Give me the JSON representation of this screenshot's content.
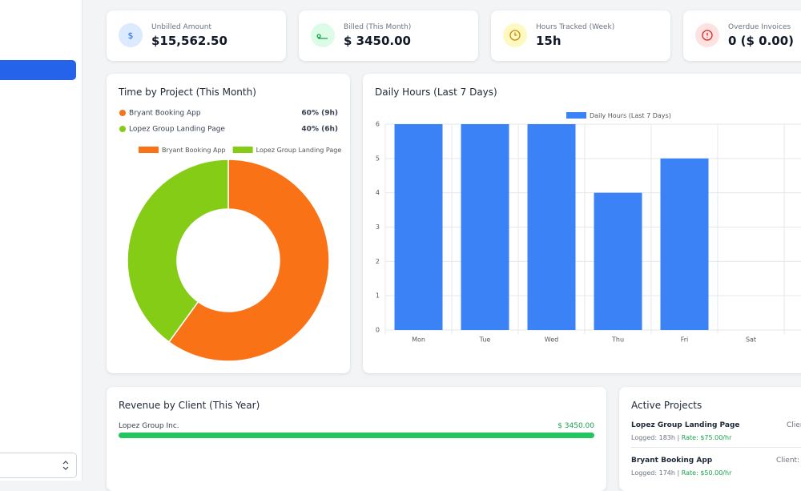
{
  "stats": [
    {
      "label": "Unbilled Amount",
      "value": "$15,562.50"
    },
    {
      "label": "Billed (This Month)",
      "value": "$ 3450.00"
    },
    {
      "label": "Hours Tracked (Week)",
      "value": "15h"
    },
    {
      "label": "Overdue Invoices",
      "value": "0 ($ 0.00)"
    }
  ],
  "chart_data": [
    {
      "type": "doughnut",
      "title": "Time by Project (This Month)",
      "categories": [
        "Bryant Booking App",
        "Lopez Group Landing Page"
      ],
      "values": [
        60,
        40
      ],
      "value_labels": [
        "60% (9h)",
        "40% (6h)"
      ],
      "colors": [
        "#f97316",
        "#84cc16"
      ],
      "legend": "top"
    },
    {
      "type": "bar",
      "title": "Daily Hours (Last 7 Days)",
      "categories": [
        "Mon",
        "Tue",
        "Wed",
        "Thu",
        "Fri",
        "Sat"
      ],
      "series": [
        {
          "name": "Daily Hours (Last 7 Days)",
          "color": "#3b82f6",
          "values": [
            6,
            6,
            6,
            4,
            5,
            0
          ]
        }
      ],
      "ylim": [
        0,
        6
      ],
      "yticks": [
        0,
        1,
        2,
        3,
        4,
        5,
        6
      ],
      "grid": true,
      "legend": "top"
    }
  ],
  "revenue": {
    "title": "Revenue by Client (This Year)",
    "clients": [
      {
        "name": "Lopez Group Inc.",
        "amount": "$ 3450.00"
      }
    ]
  },
  "projects": {
    "title": "Active Projects",
    "items": [
      {
        "name": "Lopez Group Landing Page",
        "client": "Clien",
        "logged": "Logged: 183h |",
        "rate": "Rate: $75.00/hr"
      },
      {
        "name": "Bryant Booking App",
        "client": "Client: Br",
        "logged": "Logged: 174h |",
        "rate": "Rate: $50.00/hr"
      }
    ]
  }
}
